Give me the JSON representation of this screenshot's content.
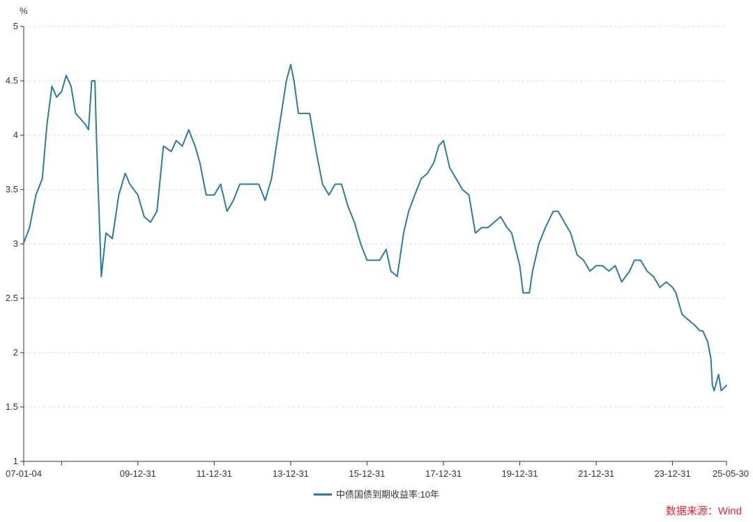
{
  "chart_data": {
    "type": "line",
    "unit": "%",
    "ylim": [
      1,
      5
    ],
    "yticks": [
      "1",
      "1.5",
      "2",
      "2.5",
      "3",
      "3.5",
      "4",
      "4.5",
      "5"
    ],
    "xticks": [
      {
        "label": "07-01-04",
        "date": "2007-01-04"
      },
      {
        "label": "",
        "date": "2008-01-01"
      },
      {
        "label": "09-12-31",
        "date": "2009-12-31"
      },
      {
        "label": "11-12-31",
        "date": "2011-12-31"
      },
      {
        "label": "13-12-31",
        "date": "2013-12-31"
      },
      {
        "label": "15-12-31",
        "date": "2015-12-31"
      },
      {
        "label": "17-12-31",
        "date": "2017-12-31"
      },
      {
        "label": "19-12-31",
        "date": "2019-12-31"
      },
      {
        "label": "21-12-31",
        "date": "2021-12-31"
      },
      {
        "label": "23-12-31",
        "date": "2023-12-31"
      },
      {
        "label": "25-05-30",
        "date": "2025-05-30"
      }
    ],
    "xrange": [
      "2007-01-04",
      "2025-05-30"
    ],
    "grid": "horizontal dashed",
    "legend_position": "bottom",
    "series": [
      {
        "name": "中债国债到期收益率:10年",
        "color": "#2a7ba0",
        "x": [
          "2007-01-04",
          "2007-03-01",
          "2007-05-01",
          "2007-07-01",
          "2007-08-15",
          "2007-10-01",
          "2007-11-15",
          "2008-01-01",
          "2008-02-15",
          "2008-04-01",
          "2008-05-15",
          "2008-07-01",
          "2008-08-15",
          "2008-09-15",
          "2008-10-15",
          "2008-11-15",
          "2008-12-01",
          "2008-12-15",
          "2009-01-01",
          "2009-01-15",
          "2009-03-01",
          "2009-05-01",
          "2009-07-01",
          "2009-09-01",
          "2009-10-15",
          "2009-12-31",
          "2010-03-01",
          "2010-05-01",
          "2010-07-01",
          "2010-09-01",
          "2010-11-15",
          "2011-01-01",
          "2011-03-01",
          "2011-05-01",
          "2011-07-01",
          "2011-08-15",
          "2011-10-15",
          "2011-12-31",
          "2012-03-01",
          "2012-05-01",
          "2012-07-01",
          "2012-09-01",
          "2012-11-01",
          "2013-01-01",
          "2013-03-01",
          "2013-05-01",
          "2013-07-01",
          "2013-09-01",
          "2013-11-20",
          "2013-12-31",
          "2014-02-01",
          "2014-03-15",
          "2014-05-01",
          "2014-07-01",
          "2014-09-01",
          "2014-11-01",
          "2015-01-01",
          "2015-03-01",
          "2015-05-01",
          "2015-07-01",
          "2015-09-01",
          "2015-11-01",
          "2015-12-31",
          "2016-03-01",
          "2016-05-01",
          "2016-07-01",
          "2016-08-15",
          "2016-10-15",
          "2016-12-15",
          "2017-02-01",
          "2017-04-01",
          "2017-06-01",
          "2017-08-01",
          "2017-10-01",
          "2017-11-15",
          "2017-12-31",
          "2018-03-01",
          "2018-05-01",
          "2018-07-01",
          "2018-09-01",
          "2018-11-01",
          "2018-12-31",
          "2019-03-01",
          "2019-05-01",
          "2019-07-01",
          "2019-09-01",
          "2019-10-15",
          "2019-12-31",
          "2020-02-01",
          "2020-04-01",
          "2020-05-01",
          "2020-07-01",
          "2020-09-01",
          "2020-11-15",
          "2021-01-01",
          "2021-03-01",
          "2021-05-01",
          "2021-07-01",
          "2021-09-01",
          "2021-11-01",
          "2021-12-31",
          "2022-03-01",
          "2022-05-01",
          "2022-07-01",
          "2022-09-01",
          "2022-11-15",
          "2023-01-01",
          "2023-03-01",
          "2023-05-01",
          "2023-07-01",
          "2023-09-01",
          "2023-11-01",
          "2023-12-31",
          "2024-02-01",
          "2024-04-01",
          "2024-06-01",
          "2024-08-01",
          "2024-09-20",
          "2024-10-15",
          "2024-12-01",
          "2024-12-31",
          "2025-01-15",
          "2025-02-01",
          "2025-03-15",
          "2025-04-10",
          "2025-05-30"
        ],
        "y": [
          3.01,
          3.15,
          3.45,
          3.6,
          4.1,
          4.45,
          4.35,
          4.4,
          4.55,
          4.45,
          4.2,
          4.15,
          4.1,
          4.05,
          4.5,
          4.5,
          3.95,
          3.55,
          3.1,
          2.7,
          3.1,
          3.05,
          3.45,
          3.65,
          3.55,
          3.45,
          3.25,
          3.2,
          3.3,
          3.9,
          3.85,
          3.95,
          3.9,
          4.05,
          3.9,
          3.75,
          3.45,
          3.45,
          3.55,
          3.3,
          3.4,
          3.55,
          3.55,
          3.55,
          3.55,
          3.4,
          3.6,
          4.0,
          4.5,
          4.65,
          4.5,
          4.2,
          4.2,
          4.2,
          3.85,
          3.55,
          3.45,
          3.55,
          3.55,
          3.35,
          3.2,
          3.0,
          2.85,
          2.85,
          2.85,
          2.95,
          2.75,
          2.7,
          3.1,
          3.3,
          3.45,
          3.6,
          3.65,
          3.75,
          3.9,
          3.95,
          3.7,
          3.6,
          3.5,
          3.45,
          3.1,
          3.15,
          3.15,
          3.2,
          3.25,
          3.15,
          3.1,
          2.8,
          2.55,
          2.55,
          2.75,
          3.0,
          3.15,
          3.3,
          3.3,
          3.2,
          3.1,
          2.9,
          2.85,
          2.75,
          2.8,
          2.8,
          2.75,
          2.8,
          2.65,
          2.75,
          2.85,
          2.85,
          2.75,
          2.7,
          2.6,
          2.65,
          2.6,
          2.55,
          2.35,
          2.3,
          2.25,
          2.2,
          2.2,
          2.1,
          1.95,
          1.7,
          1.65,
          1.8,
          1.65,
          1.7
        ]
      }
    ]
  },
  "source_text": "数据来源：Wind",
  "source_color": "#e8262e"
}
